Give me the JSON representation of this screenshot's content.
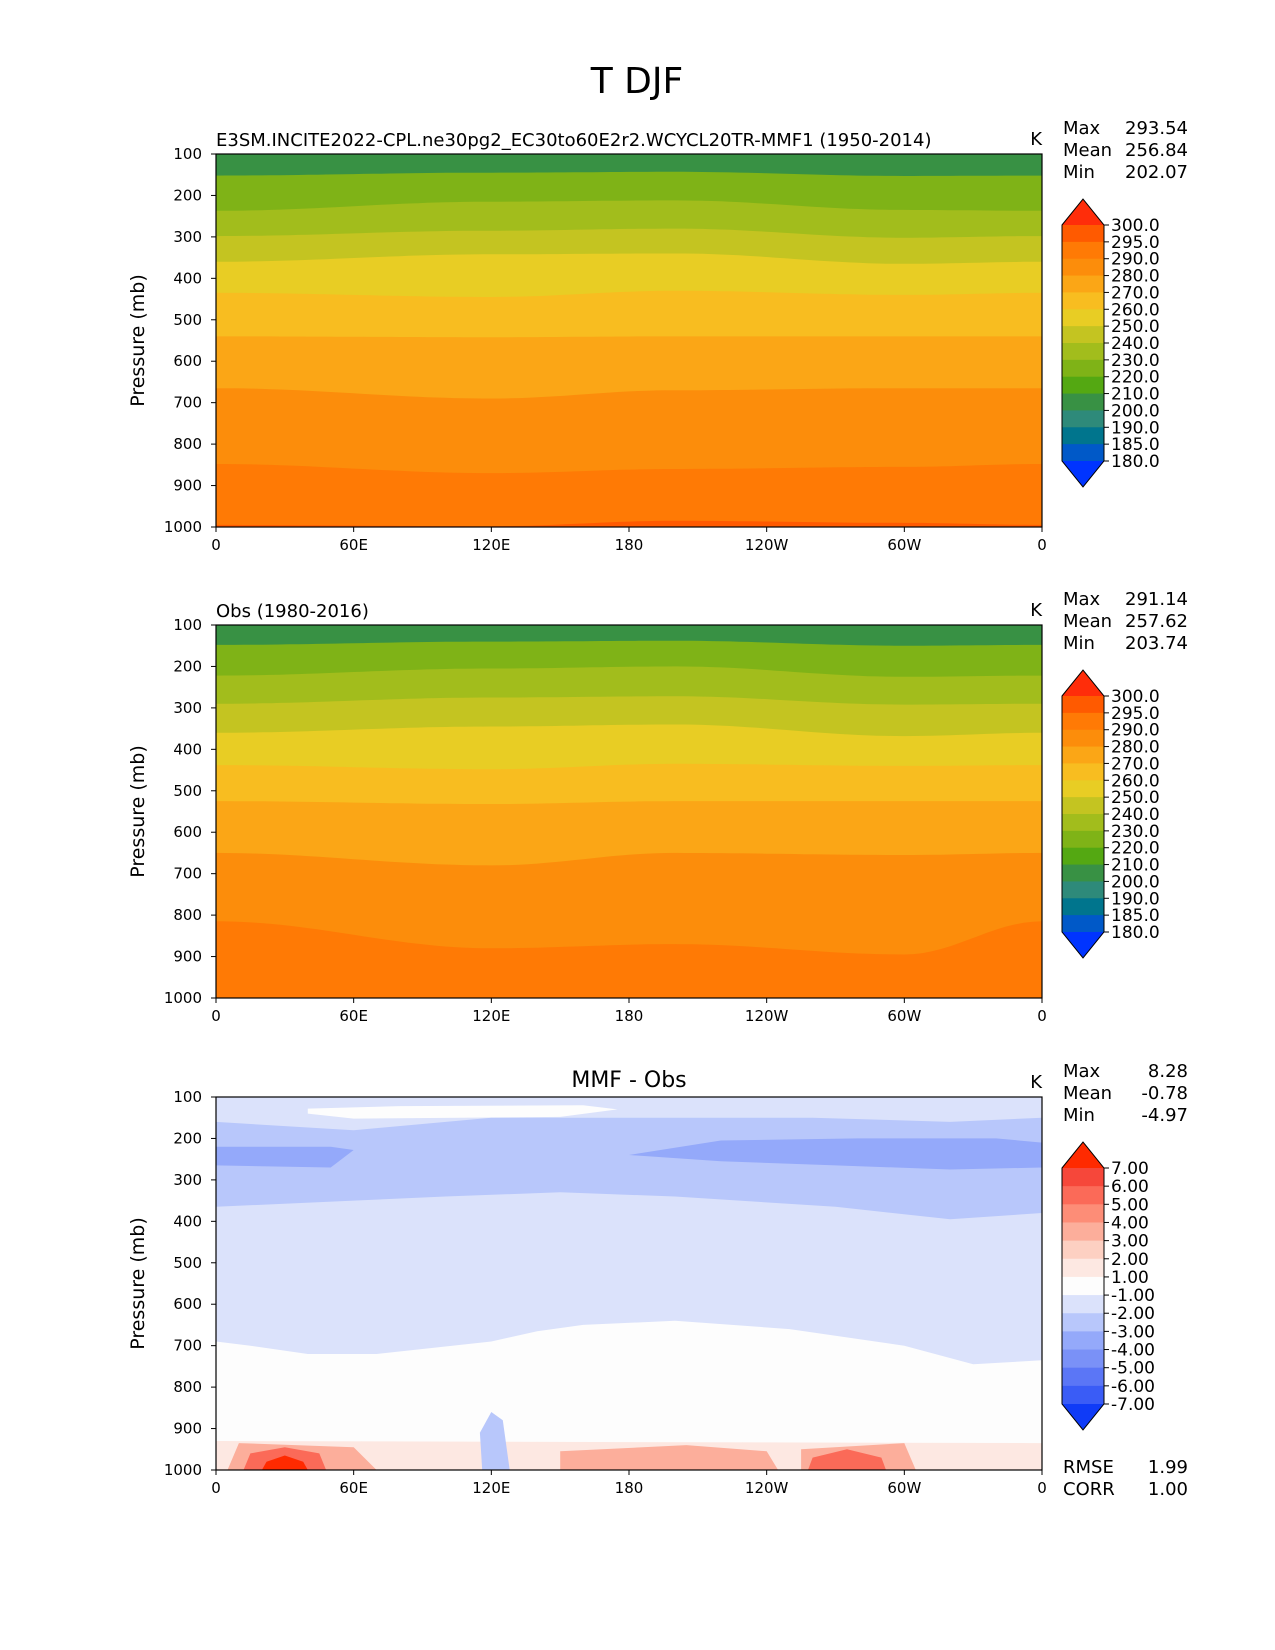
{
  "figure": {
    "title": "T DJF"
  },
  "chart_data": [
    {
      "type": "heatmap",
      "subtitle": "E3SM.INCITE2022-CPL.ne30pg2_EC30to60E2r2.WCYCL20TR-MMF1 (1950-2014)",
      "units": "K",
      "ylabel": "Pressure (mb)",
      "xlabel": "",
      "x_ticks": [
        "0",
        "60E",
        "120E",
        "180",
        "120W",
        "60W",
        "0"
      ],
      "y_ticks": [
        "100",
        "200",
        "300",
        "400",
        "500",
        "600",
        "700",
        "800",
        "900",
        "1000"
      ],
      "ylim": [
        1000,
        100
      ],
      "xlim": [
        0,
        360
      ],
      "stats": [
        {
          "label": "Max",
          "value": "293.54"
        },
        {
          "label": "Mean",
          "value": "256.84"
        },
        {
          "label": "Min",
          "value": "202.07"
        }
      ],
      "levels": [
        "300.0",
        "295.0",
        "290.0",
        "280.0",
        "270.0",
        "260.0",
        "250.0",
        "240.0",
        "230.0",
        "220.0",
        "210.0",
        "200.0",
        "190.0",
        "185.0",
        "180.0"
      ],
      "colors": [
        "#ff2d0a",
        "#ff5a00",
        "#ff7a05",
        "#fc8d0b",
        "#fba616",
        "#f8bd20",
        "#e8cd24",
        "#c4c421",
        "#a2bd1c",
        "#7fb317",
        "#54a812",
        "#389144",
        "#2e8a7a",
        "#00758d",
        "#0059c8",
        "#0034ff"
      ],
      "approx_contour_pressures_mb": [
        {
          "level": "220.0",
          "p_at_lon": [
            [
              0,
              152
            ],
            [
              120,
              145
            ],
            [
              200,
              143
            ],
            [
              300,
              153
            ],
            [
              360,
              152
            ]
          ]
        },
        {
          "level": "230.0",
          "p_at_lon": [
            [
              0,
              237
            ],
            [
              120,
              215
            ],
            [
              200,
              212
            ],
            [
              300,
              235
            ],
            [
              360,
              237
            ]
          ]
        },
        {
          "level": "240.0",
          "p_at_lon": [
            [
              0,
              298
            ],
            [
              120,
              285
            ],
            [
              200,
              280
            ],
            [
              300,
              302
            ],
            [
              360,
              298
            ]
          ]
        },
        {
          "level": "250.0",
          "p_at_lon": [
            [
              0,
              360
            ],
            [
              120,
              342
            ],
            [
              200,
              340
            ],
            [
              300,
              365
            ],
            [
              360,
              360
            ]
          ]
        },
        {
          "level": "260.0",
          "p_at_lon": [
            [
              0,
              435
            ],
            [
              120,
              445
            ],
            [
              200,
              430
            ],
            [
              300,
              440
            ],
            [
              360,
              435
            ]
          ]
        },
        {
          "level": "270.0",
          "p_at_lon": [
            [
              0,
              540
            ],
            [
              120,
              542
            ],
            [
              200,
              540
            ],
            [
              300,
              540
            ],
            [
              360,
              540
            ]
          ]
        },
        {
          "level": "280.0",
          "p_at_lon": [
            [
              0,
              665
            ],
            [
              120,
              690
            ],
            [
              200,
              670
            ],
            [
              300,
              665
            ],
            [
              360,
              665
            ]
          ]
        },
        {
          "level": "290.0",
          "p_at_lon": [
            [
              0,
              848
            ],
            [
              120,
              870
            ],
            [
              200,
              860
            ],
            [
              300,
              855
            ],
            [
              360,
              848
            ]
          ]
        },
        {
          "level": "295.0",
          "p_at_lon": [
            [
              0,
              995
            ],
            [
              120,
              998
            ],
            [
              200,
              985
            ],
            [
              300,
              990
            ],
            [
              360,
              995
            ]
          ]
        }
      ]
    },
    {
      "type": "heatmap",
      "subtitle": "Obs (1980-2016)",
      "units": "K",
      "ylabel": "Pressure (mb)",
      "xlabel": "",
      "x_ticks": [
        "0",
        "60E",
        "120E",
        "180",
        "120W",
        "60W",
        "0"
      ],
      "y_ticks": [
        "100",
        "200",
        "300",
        "400",
        "500",
        "600",
        "700",
        "800",
        "900",
        "1000"
      ],
      "ylim": [
        1000,
        100
      ],
      "xlim": [
        0,
        360
      ],
      "stats": [
        {
          "label": "Max",
          "value": "291.14"
        },
        {
          "label": "Mean",
          "value": "257.62"
        },
        {
          "label": "Min",
          "value": "203.74"
        }
      ],
      "levels": [
        "300.0",
        "295.0",
        "290.0",
        "280.0",
        "270.0",
        "260.0",
        "250.0",
        "240.0",
        "230.0",
        "220.0",
        "210.0",
        "200.0",
        "190.0",
        "185.0",
        "180.0"
      ],
      "colors": [
        "#ff2d0a",
        "#ff5a00",
        "#ff7a05",
        "#fc8d0b",
        "#fba616",
        "#f8bd20",
        "#e8cd24",
        "#c4c421",
        "#a2bd1c",
        "#7fb317",
        "#54a812",
        "#389144",
        "#2e8a7a",
        "#00758d",
        "#0059c8",
        "#0034ff"
      ],
      "approx_contour_pressures_mb": [
        {
          "level": "220.0",
          "p_at_lon": [
            [
              0,
              148
            ],
            [
              120,
              140
            ],
            [
              200,
              138
            ],
            [
              300,
              150
            ],
            [
              360,
              148
            ]
          ]
        },
        {
          "level": "230.0",
          "p_at_lon": [
            [
              0,
              222
            ],
            [
              120,
              205
            ],
            [
              200,
              200
            ],
            [
              300,
              225
            ],
            [
              360,
              222
            ]
          ]
        },
        {
          "level": "240.0",
          "p_at_lon": [
            [
              0,
              290
            ],
            [
              120,
              275
            ],
            [
              200,
              272
            ],
            [
              300,
              292
            ],
            [
              360,
              290
            ]
          ]
        },
        {
          "level": "250.0",
          "p_at_lon": [
            [
              0,
              360
            ],
            [
              120,
              345
            ],
            [
              200,
              340
            ],
            [
              300,
              368
            ],
            [
              360,
              360
            ]
          ]
        },
        {
          "level": "260.0",
          "p_at_lon": [
            [
              0,
              438
            ],
            [
              120,
              448
            ],
            [
              200,
              435
            ],
            [
              300,
              440
            ],
            [
              360,
              438
            ]
          ]
        },
        {
          "level": "270.0",
          "p_at_lon": [
            [
              0,
              525
            ],
            [
              120,
              532
            ],
            [
              200,
              525
            ],
            [
              300,
              525
            ],
            [
              360,
              525
            ]
          ]
        },
        {
          "level": "280.0",
          "p_at_lon": [
            [
              0,
              650
            ],
            [
              120,
              680
            ],
            [
              200,
              650
            ],
            [
              300,
              655
            ],
            [
              360,
              650
            ]
          ]
        },
        {
          "level": "290.0",
          "p_at_lon": [
            [
              0,
              815
            ],
            [
              120,
              880
            ],
            [
              200,
              870
            ],
            [
              300,
              895
            ],
            [
              360,
              815
            ]
          ]
        }
      ]
    },
    {
      "type": "heatmap",
      "title": "MMF - Obs",
      "units": "K",
      "ylabel": "Pressure (mb)",
      "xlabel": "",
      "x_ticks": [
        "0",
        "60E",
        "120E",
        "180",
        "120W",
        "60W",
        "0"
      ],
      "y_ticks": [
        "100",
        "200",
        "300",
        "400",
        "500",
        "600",
        "700",
        "800",
        "900",
        "1000"
      ],
      "ylim": [
        1000,
        100
      ],
      "xlim": [
        0,
        360
      ],
      "stats": [
        {
          "label": "Max",
          "value": "8.28"
        },
        {
          "label": "Mean",
          "value": "-0.78"
        },
        {
          "label": "Min",
          "value": "-4.97"
        }
      ],
      "levels": [
        "7.00",
        "6.00",
        "5.00",
        "4.00",
        "3.00",
        "2.00",
        "1.00",
        "-1.00",
        "-2.00",
        "-3.00",
        "-4.00",
        "-5.00",
        "-6.00",
        "-7.00"
      ],
      "colors": [
        "#ff2a00",
        "#f6473a",
        "#fb6a58",
        "#fd8d77",
        "#fcae9b",
        "#fdd0c2",
        "#fde8e2",
        "#fdfdfd",
        "#dbe2fb",
        "#b8c7fb",
        "#94a9fa",
        "#7a91f7",
        "#5b76f6",
        "#3a5cf6",
        "#0f3bf7"
      ],
      "stats_extra": [
        {
          "label": "RMSE",
          "value": "1.99"
        },
        {
          "label": "CORR",
          "value": "1.00"
        }
      ]
    }
  ]
}
